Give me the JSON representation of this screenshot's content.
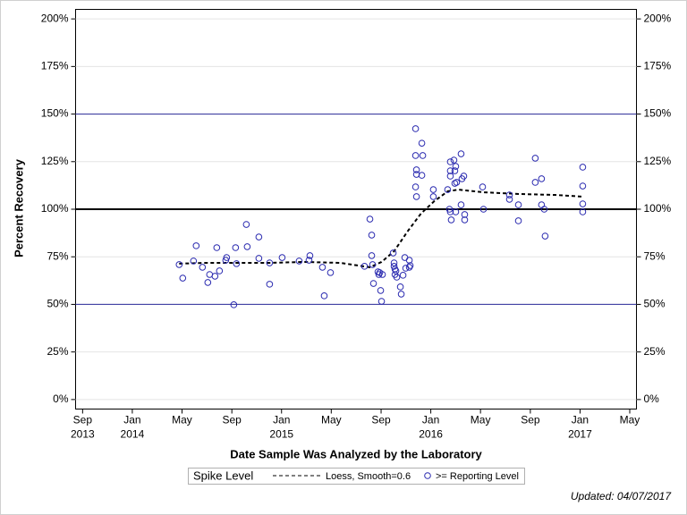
{
  "chart_data": {
    "type": "scatter",
    "x_label": "Date Sample Was Analyzed by the Laboratory",
    "y_label": "Percent Recovery",
    "legend_title": "Spike Level",
    "footnote": "Updated: 04/07/2017",
    "grid": true,
    "xlim": [
      2013.62,
      2017.378
    ],
    "ylim": [
      -5,
      205
    ],
    "y2lim": [
      -5,
      205
    ],
    "xticks": [
      {
        "value": 2013.667,
        "label": "Sep"
      },
      {
        "value": 2014.0,
        "label": "Jan"
      },
      {
        "value": 2014.333,
        "label": "May"
      },
      {
        "value": 2014.667,
        "label": "Sep"
      },
      {
        "value": 2015.0,
        "label": "Jan"
      },
      {
        "value": 2015.333,
        "label": "May"
      },
      {
        "value": 2015.667,
        "label": "Sep"
      },
      {
        "value": 2016.0,
        "label": "Jan"
      },
      {
        "value": 2016.333,
        "label": "May"
      },
      {
        "value": 2016.667,
        "label": "Sep"
      },
      {
        "value": 2017.0,
        "label": "Jan"
      },
      {
        "value": 2017.333,
        "label": "May"
      }
    ],
    "xtick_years": [
      {
        "value": 2013.667,
        "label": "2013"
      },
      {
        "value": 2014.0,
        "label": "2014"
      },
      {
        "value": 2015.0,
        "label": "2015"
      },
      {
        "value": 2016.0,
        "label": "2016"
      },
      {
        "value": 2017.0,
        "label": "2017"
      }
    ],
    "yticks": [
      {
        "value": 0,
        "label": "0%"
      },
      {
        "value": 25,
        "label": "25%"
      },
      {
        "value": 50,
        "label": "50%"
      },
      {
        "value": 75,
        "label": "75%"
      },
      {
        "value": 100,
        "label": "100%"
      },
      {
        "value": 125,
        "label": "125%"
      },
      {
        "value": 150,
        "label": "150%"
      },
      {
        "value": 175,
        "label": "175%"
      },
      {
        "value": 200,
        "label": "200%"
      }
    ],
    "y2ticks": [
      {
        "value": 0,
        "label": "0%"
      },
      {
        "value": 25,
        "label": "25%"
      },
      {
        "value": 50,
        "label": "50%"
      },
      {
        "value": 75,
        "label": "75%"
      },
      {
        "value": 100,
        "label": "100%"
      },
      {
        "value": 125,
        "label": "125%"
      },
      {
        "value": 150,
        "label": "150%"
      },
      {
        "value": 175,
        "label": "175%"
      },
      {
        "value": 200,
        "label": "200%"
      }
    ],
    "reference_lines": [
      {
        "value": 50,
        "color": "#2b2b9a",
        "width": 1
      },
      {
        "value": 100,
        "color": "#000000",
        "width": 2
      },
      {
        "value": 150,
        "color": "#2b2b9a",
        "width": 1
      }
    ],
    "series": [
      {
        "name": "Loess, Smooth=0.6",
        "type": "line",
        "color": "#000000",
        "x": [
          2014.314,
          2014.404,
          2014.494,
          2014.674,
          2014.914,
          2015.154,
          2015.394,
          2015.592,
          2015.67,
          2015.754,
          2015.844,
          2015.934,
          2016.023,
          2016.113,
          2016.185,
          2016.353,
          2016.593,
          2016.833,
          2017.018
        ],
        "values": [
          71.4,
          71.6,
          71.8,
          71.8,
          71.8,
          72.3,
          71.8,
          69.5,
          72.3,
          77.9,
          88.3,
          97.7,
          104.2,
          109.4,
          110.3,
          108.9,
          108.0,
          107.5,
          106.6
        ]
      },
      {
        "name": ">= Reporting Level",
        "type": "scatter",
        "color": "#2b2bb0",
        "x": [
          2014.314,
          2014.338,
          2014.41,
          2014.428,
          2014.47,
          2014.506,
          2014.518,
          2014.554,
          2014.566,
          2014.584,
          2014.626,
          2014.632,
          2014.68,
          2014.692,
          2014.698,
          2014.764,
          2014.77,
          2014.848,
          2014.848,
          2014.92,
          2014.92,
          2015.004,
          2015.118,
          2015.184,
          2015.19,
          2015.274,
          2015.286,
          2015.328,
          2015.556,
          2015.592,
          2015.604,
          2015.604,
          2015.61,
          2015.616,
          2015.646,
          2015.652,
          2015.658,
          2015.664,
          2015.67,
          2015.676,
          2015.748,
          2015.754,
          2015.754,
          2015.76,
          2015.76,
          2015.766,
          2015.772,
          2015.796,
          2015.802,
          2015.814,
          2015.826,
          2015.832,
          2015.856,
          2015.856,
          2015.862,
          2015.898,
          2015.898,
          2015.898,
          2015.904,
          2015.904,
          2015.904,
          2015.94,
          2015.94,
          2015.946,
          2016.017,
          2016.017,
          2016.113,
          2016.125,
          2016.131,
          2016.131,
          2016.131,
          2016.131,
          2016.137,
          2016.155,
          2016.161,
          2016.161,
          2016.167,
          2016.167,
          2016.173,
          2016.203,
          2016.203,
          2016.209,
          2016.221,
          2016.227,
          2016.227,
          2016.347,
          2016.353,
          2016.527,
          2016.527,
          2016.587,
          2016.587,
          2016.7,
          2016.7,
          2016.742,
          2016.742,
          2016.76,
          2016.766,
          2017.018,
          2017.018,
          2017.018,
          2017.018
        ],
        "values": [
          70.9,
          63.8,
          72.8,
          80.8,
          69.5,
          61.5,
          65.7,
          64.8,
          79.8,
          67.6,
          73.2,
          74.6,
          49.8,
          79.8,
          71.4,
          92.0,
          80.3,
          85.4,
          74.2,
          71.8,
          60.6,
          74.6,
          72.8,
          73.2,
          75.6,
          69.5,
          54.5,
          66.7,
          70.0,
          94.8,
          86.4,
          75.6,
          70.9,
          61.0,
          67.1,
          65.7,
          66.7,
          57.3,
          51.6,
          65.7,
          77.0,
          71.8,
          70.0,
          68.5,
          65.7,
          67.6,
          64.3,
          59.2,
          55.4,
          65.3,
          74.6,
          69.0,
          73.2,
          69.5,
          70.4,
          142.3,
          128.2,
          111.7,
          120.7,
          118.3,
          106.6,
          134.7,
          117.8,
          128.2,
          110.3,
          106.6,
          110.3,
          100.0,
          124.9,
          120.2,
          117.4,
          98.6,
          94.4,
          125.8,
          120.2,
          113.6,
          122.5,
          98.6,
          114.1,
          129.1,
          102.3,
          116.0,
          117.4,
          97.2,
          94.4,
          111.7,
          100.0,
          107.5,
          105.2,
          102.3,
          93.9,
          126.8,
          114.1,
          116.0,
          102.3,
          100.0,
          85.9,
          122.1,
          112.2,
          102.8,
          98.6
        ]
      }
    ]
  }
}
